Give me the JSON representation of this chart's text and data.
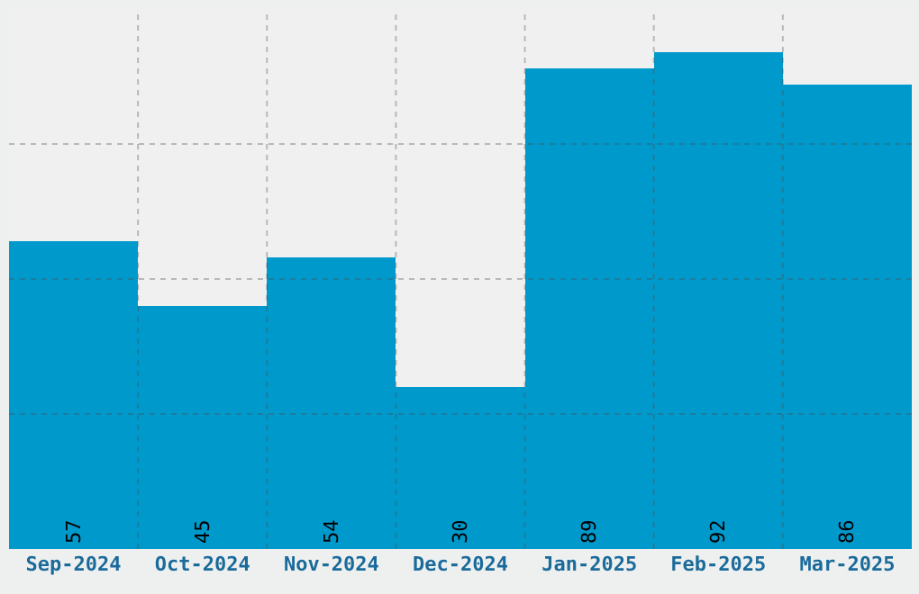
{
  "chart_data": {
    "type": "bar",
    "categories": [
      "Sep-2024",
      "Oct-2024",
      "Nov-2024",
      "Dec-2024",
      "Jan-2025",
      "Feb-2025",
      "Mar-2025"
    ],
    "values": [
      57,
      45,
      54,
      30,
      89,
      92,
      86
    ],
    "color": "#0099cc",
    "ylim": [
      0,
      100
    ],
    "tick_labels": "x",
    "grid": true,
    "data_labels": true
  }
}
